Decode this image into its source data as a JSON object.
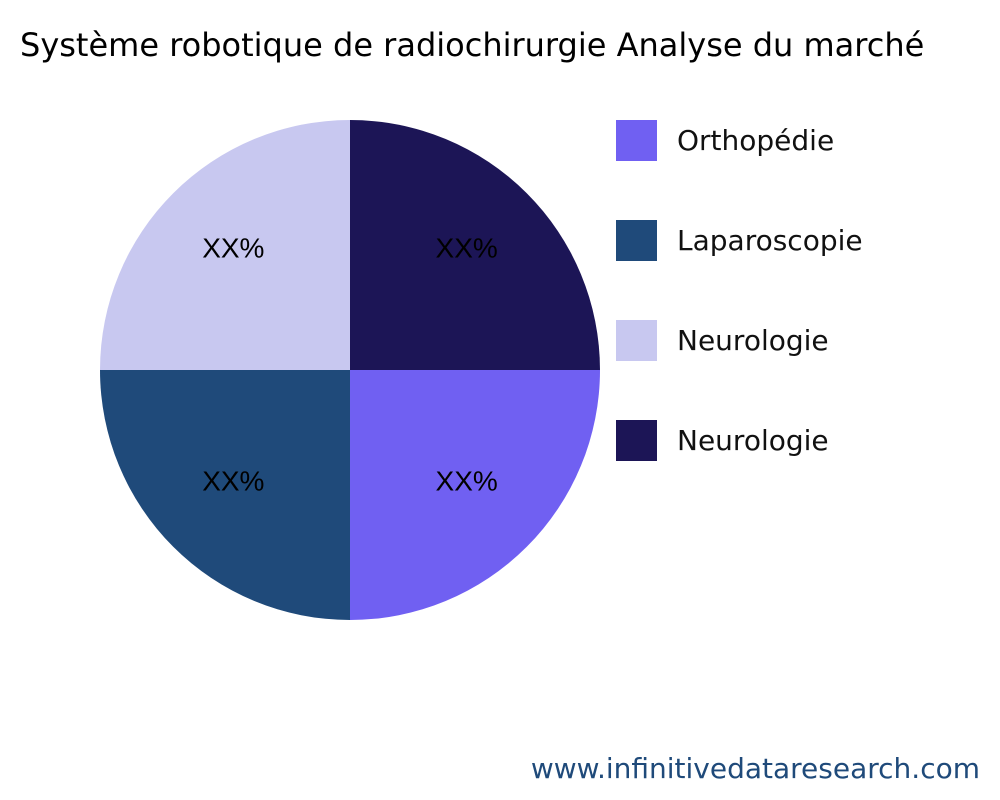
{
  "chart_data": {
    "type": "pie",
    "title": "Système robotique de radiochirurgie Analyse du marché",
    "categories": [
      "Orthopédie",
      "Laparoscopie",
      "Neurologie",
      "Neurologie"
    ],
    "values": [
      25,
      25,
      25,
      25
    ],
    "data_labels": [
      "XX%",
      "XX%",
      "XX%",
      "XX%"
    ],
    "colors": [
      "#7060f2",
      "#1f4a7a",
      "#c8c8f0",
      "#1c1556"
    ],
    "legend_placement": "right"
  },
  "footer": "www.infinitivedataresearch.com"
}
